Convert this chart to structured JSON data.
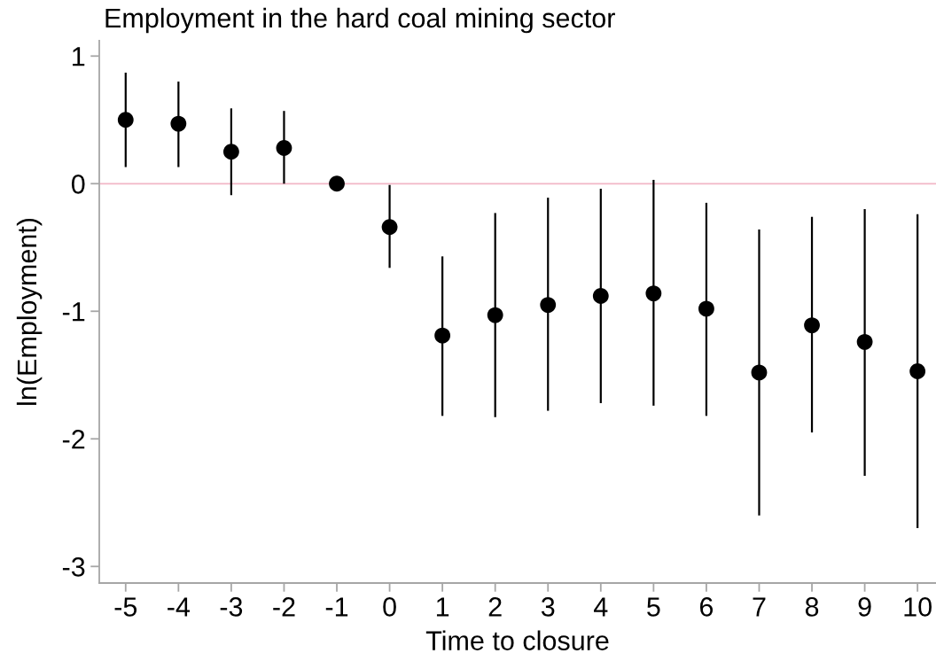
{
  "chart_data": {
    "type": "scatter",
    "title": "Employment in the hard coal mining sector",
    "xlabel": "Time to closure",
    "ylabel": "ln(Employment)",
    "x": [
      -5,
      -4,
      -3,
      -2,
      -1,
      0,
      1,
      2,
      3,
      4,
      5,
      6,
      7,
      8,
      9,
      10
    ],
    "values": [
      0.5,
      0.47,
      0.25,
      0.28,
      0,
      -0.34,
      -1.19,
      -1.03,
      -0.95,
      -0.88,
      -0.86,
      -0.98,
      -1.48,
      -1.11,
      -1.24,
      -1.47
    ],
    "errors": [
      [
        0.13,
        0.87
      ],
      [
        0.13,
        0.8
      ],
      [
        -0.09,
        0.59
      ],
      [
        0.0,
        0.57
      ],
      null,
      [
        -0.66,
        -0.01
      ],
      [
        -1.82,
        -0.57
      ],
      [
        -1.83,
        -0.23
      ],
      [
        -1.78,
        -0.11
      ],
      [
        -1.72,
        -0.04
      ],
      [
        -1.74,
        0.03
      ],
      [
        -1.82,
        -0.15
      ],
      [
        -2.6,
        -0.36
      ],
      [
        -1.95,
        -0.26
      ],
      [
        -2.29,
        -0.2
      ],
      [
        -2.7,
        -0.24
      ]
    ],
    "color": "#000000",
    "marker": "circle",
    "xlim": [
      -5.5,
      10.35
    ],
    "xticks": [
      -5,
      -4,
      -3,
      -2,
      -1,
      0,
      1,
      2,
      3,
      4,
      5,
      6,
      7,
      8,
      9,
      10
    ],
    "ylim": [
      -3.13,
      1.12
    ],
    "yticks": [
      -3,
      -2,
      -1,
      0,
      1
    ],
    "ref_lines": [
      {
        "axis": "y",
        "value": 0,
        "color": "#f2b6c6"
      }
    ],
    "grid": false,
    "legend": false
  }
}
